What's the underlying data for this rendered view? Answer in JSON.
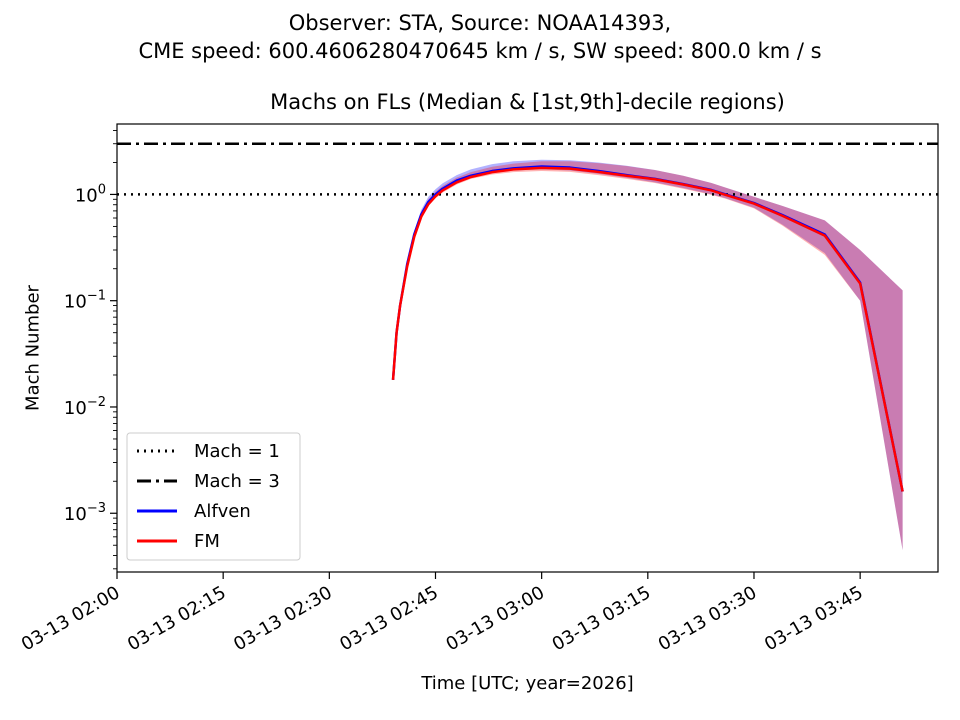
{
  "chart_data": {
    "type": "line",
    "suptitle_line1": "Observer: STA, Source: NOAA14393,",
    "suptitle_line2": "CME speed: 600.4606280470645 km / s, SW speed: 800.0 km / s",
    "title": "Machs on FLs (Median & [1st,9th]-decile regions)",
    "xlabel": "Time [UTC; year=2026]",
    "ylabel": "Mach Number",
    "yscale": "log",
    "ylim": [
      0.00028,
      4.6
    ],
    "xlim_minutes": [
      0,
      116
    ],
    "x_ticks": [
      {
        "min": 0,
        "label": "03-13 02:00"
      },
      {
        "min": 15,
        "label": "03-13 02:15"
      },
      {
        "min": 30,
        "label": "03-13 02:30"
      },
      {
        "min": 45,
        "label": "03-13 02:45"
      },
      {
        "min": 60,
        "label": "03-13 03:00"
      },
      {
        "min": 75,
        "label": "03-13 03:15"
      },
      {
        "min": 90,
        "label": "03-13 03:30"
      },
      {
        "min": 105,
        "label": "03-13 03:45"
      }
    ],
    "y_ticks": [
      {
        "value": 0.001,
        "base": "10",
        "exp": "−3"
      },
      {
        "value": 0.01,
        "base": "10",
        "exp": "−2"
      },
      {
        "value": 0.1,
        "base": "10",
        "exp": "−1"
      },
      {
        "value": 1,
        "base": "10",
        "exp": "0"
      }
    ],
    "hlines": [
      {
        "name": "Mach = 1",
        "y": 1,
        "style": "dotted",
        "color": "#000000"
      },
      {
        "name": "Mach = 3",
        "y": 3,
        "style": "dashdot",
        "color": "#000000"
      }
    ],
    "x_minutes": [
      39,
      39.5,
      40,
      41,
      42,
      43,
      44,
      45,
      46,
      48,
      50,
      53,
      56,
      60,
      64,
      68,
      72,
      76,
      80,
      84,
      86,
      90,
      94,
      100,
      105,
      111
    ],
    "series": [
      {
        "name": "Alfven",
        "color": "#0000ff",
        "median": [
          0.018,
          0.05,
          0.09,
          0.22,
          0.42,
          0.65,
          0.85,
          1.0,
          1.13,
          1.35,
          1.5,
          1.66,
          1.76,
          1.83,
          1.79,
          1.66,
          1.52,
          1.4,
          1.25,
          1.1,
          1.0,
          0.83,
          0.64,
          0.42,
          0.148,
          0.0016
        ],
        "lower": [
          0.018,
          0.05,
          0.09,
          0.22,
          0.42,
          0.64,
          0.84,
          0.98,
          1.1,
          1.3,
          1.45,
          1.6,
          1.68,
          1.72,
          1.68,
          1.56,
          1.43,
          1.3,
          1.15,
          1.0,
          0.92,
          0.75,
          0.52,
          0.28,
          0.1,
          0.00045
        ],
        "upper": [
          0.018,
          0.05,
          0.09,
          0.23,
          0.45,
          0.72,
          0.95,
          1.12,
          1.27,
          1.52,
          1.72,
          1.93,
          2.05,
          2.12,
          2.1,
          2.0,
          1.86,
          1.7,
          1.5,
          1.28,
          1.16,
          0.95,
          0.78,
          0.57,
          0.3,
          0.125
        ]
      },
      {
        "name": "FM",
        "color": "#ff0000",
        "median": [
          0.018,
          0.05,
          0.09,
          0.21,
          0.4,
          0.62,
          0.81,
          0.96,
          1.09,
          1.3,
          1.46,
          1.62,
          1.72,
          1.78,
          1.75,
          1.63,
          1.5,
          1.39,
          1.24,
          1.09,
          0.99,
          0.82,
          0.63,
          0.41,
          0.145,
          0.0016
        ],
        "lower": [
          0.018,
          0.05,
          0.09,
          0.21,
          0.4,
          0.6,
          0.78,
          0.92,
          1.04,
          1.24,
          1.4,
          1.54,
          1.62,
          1.66,
          1.63,
          1.52,
          1.4,
          1.28,
          1.13,
          0.99,
          0.91,
          0.74,
          0.51,
          0.27,
          0.1,
          0.00045
        ],
        "upper": [
          0.018,
          0.05,
          0.09,
          0.22,
          0.43,
          0.69,
          0.9,
          1.06,
          1.2,
          1.44,
          1.62,
          1.82,
          1.95,
          2.05,
          2.05,
          1.97,
          1.85,
          1.7,
          1.5,
          1.28,
          1.16,
          0.95,
          0.78,
          0.57,
          0.3,
          0.125
        ]
      }
    ],
    "legend": {
      "placement": "lower-left",
      "entries": [
        "Mach = 1",
        "Mach = 3",
        "Alfven",
        "FM"
      ]
    }
  }
}
